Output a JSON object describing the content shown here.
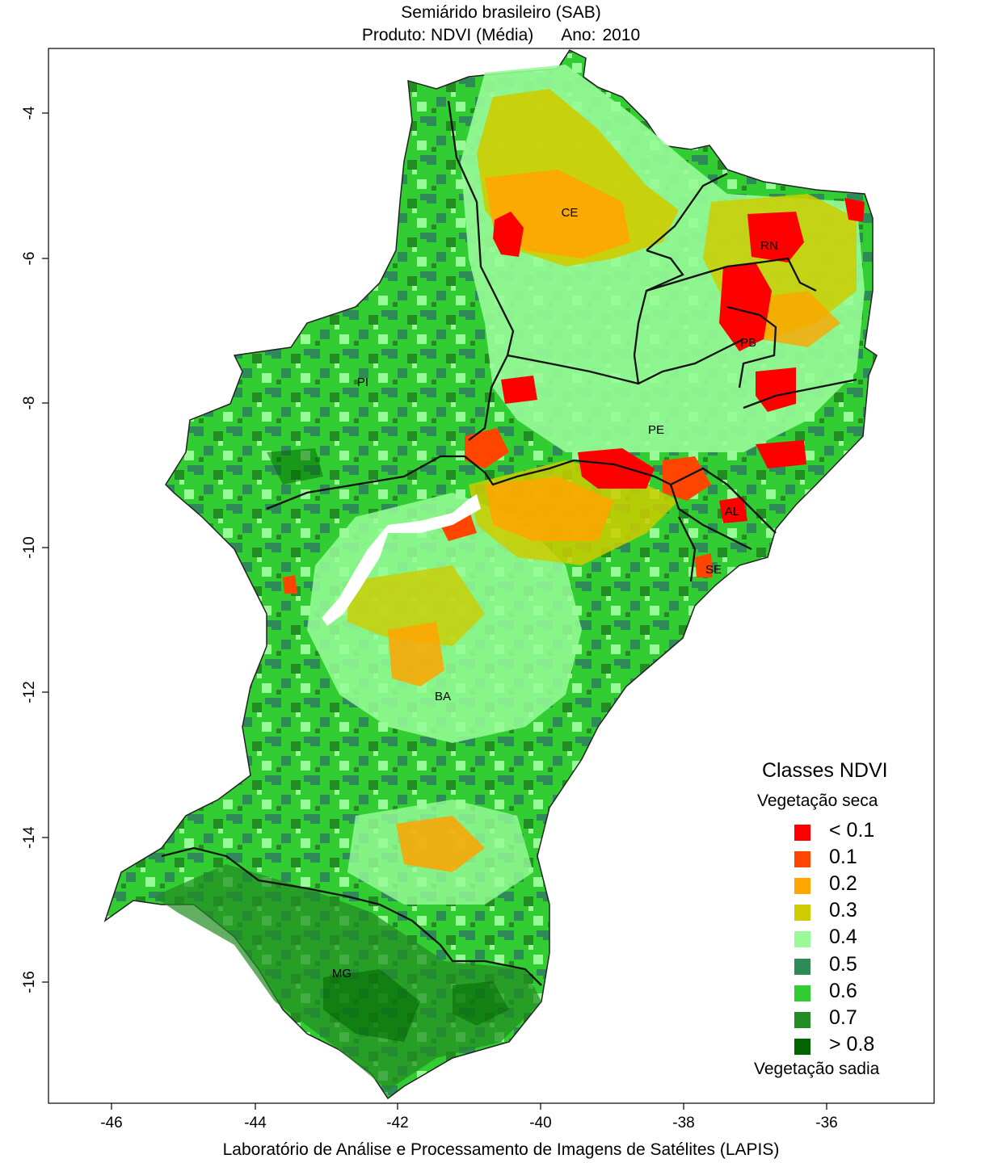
{
  "title": {
    "line1": "Semiárido brasileiro (SAB)",
    "product": "Produto: NDVI (Média)",
    "year_label": "Ano:",
    "year": "2010"
  },
  "axes": {
    "x_ticks": [
      "-46",
      "-44",
      "-42",
      "-40",
      "-38",
      "-36"
    ],
    "y_ticks": [
      "-4",
      "-6",
      "-8",
      "-10",
      "-12",
      "-14",
      "-16"
    ]
  },
  "states": [
    "CE",
    "RN",
    "PB",
    "PI",
    "PE",
    "AL",
    "SE",
    "BA",
    "MG"
  ],
  "legend": {
    "title": "Classes NDVI",
    "top_label": "Vegetação seca",
    "bottom_label": "Vegetação sadia",
    "classes": [
      {
        "label": "< 0.1",
        "color": "#FF0000"
      },
      {
        "label": "0.1",
        "color": "#FF4500"
      },
      {
        "label": "0.2",
        "color": "#FFA500"
      },
      {
        "label": "0.3",
        "color": "#CDCD00"
      },
      {
        "label": "0.4",
        "color": "#98FB98"
      },
      {
        "label": "0.5",
        "color": "#2E8B57"
      },
      {
        "label": "0.6",
        "color": "#32CD32"
      },
      {
        "label": "0.7",
        "color": "#228B22"
      },
      {
        "label": "> 0.8",
        "color": "#006400"
      }
    ]
  },
  "footer": "Laboratório de Análise e Processamento de Imagens de Satélites (LAPIS)"
}
